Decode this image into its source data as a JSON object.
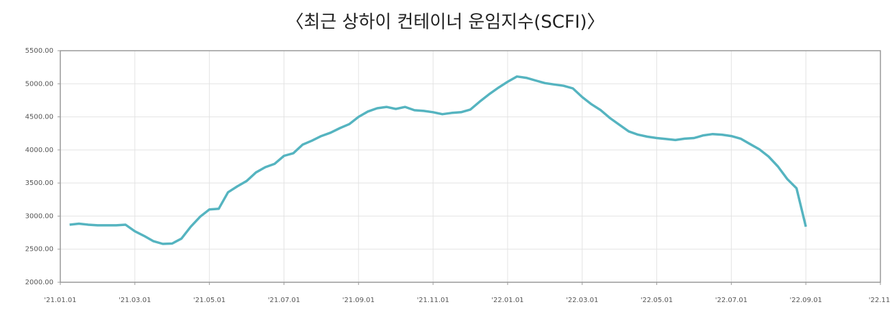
{
  "chart_data": {
    "type": "line",
    "title": "〈최근 상하이 컨테이너 운임지수(SCFI)〉",
    "categories": [
      "'21.01.01",
      null,
      null,
      null,
      null,
      null,
      null,
      null,
      "'21.03.01",
      null,
      null,
      null,
      null,
      null,
      null,
      null,
      "'21.05.01",
      null,
      null,
      null,
      null,
      null,
      null,
      null,
      "'21.07.01",
      null,
      null,
      null,
      null,
      null,
      null,
      null,
      "'21.09.01",
      null,
      null,
      null,
      null,
      null,
      null,
      null,
      "'21.11.01",
      null,
      null,
      null,
      null,
      null,
      null,
      null,
      "'22.01.01",
      null,
      null,
      null,
      null,
      null,
      null,
      null,
      "'22.03.01",
      null,
      null,
      null,
      null,
      null,
      null,
      null,
      "'22.05.01",
      null,
      null,
      null,
      null,
      null,
      null,
      null,
      "'22.07.01",
      null,
      null,
      null,
      null,
      null,
      null,
      null,
      "'22.09.01",
      null,
      null,
      null,
      null,
      null,
      null,
      null,
      "'22.11."
    ],
    "series": [
      {
        "name": "SCFI",
        "color": "#55b4c0",
        "values": [
          null,
          2870,
          2885,
          2870,
          2860,
          2860,
          2860,
          2870,
          2770,
          2700,
          2620,
          2580,
          2585,
          2660,
          2840,
          2990,
          3100,
          3110,
          3360,
          3450,
          3530,
          3660,
          3740,
          3790,
          3910,
          3950,
          4080,
          4140,
          4210,
          4260,
          4330,
          4390,
          4500,
          4580,
          4630,
          4650,
          4620,
          4650,
          4600,
          4590,
          4570,
          4540,
          4560,
          4570,
          4610,
          4730,
          4840,
          4940,
          5030,
          5110,
          5090,
          5050,
          5010,
          4990,
          4970,
          4930,
          4800,
          4690,
          4600,
          4480,
          4380,
          4280,
          4230,
          4200,
          4180,
          4165,
          4150,
          4170,
          4180,
          4220,
          4240,
          4230,
          4210,
          4170,
          4090,
          4010,
          3900,
          3750,
          3560,
          3420,
          2840,
          null,
          null,
          null,
          null,
          null,
          null,
          null,
          null
        ]
      }
    ],
    "ylim": [
      2000,
      5500
    ],
    "yticks": [
      {
        "value": 2000,
        "label": "2000.00"
      },
      {
        "value": 2500,
        "label": "2500.00"
      },
      {
        "value": 3000,
        "label": "3000.00"
      },
      {
        "value": 3500,
        "label": "3500.00"
      },
      {
        "value": 4000,
        "label": "4000.00"
      },
      {
        "value": 4500,
        "label": "4500.00"
      },
      {
        "value": 5000,
        "label": "5000.00"
      },
      {
        "value": 5500,
        "label": "5500.00"
      }
    ],
    "grid": true
  }
}
